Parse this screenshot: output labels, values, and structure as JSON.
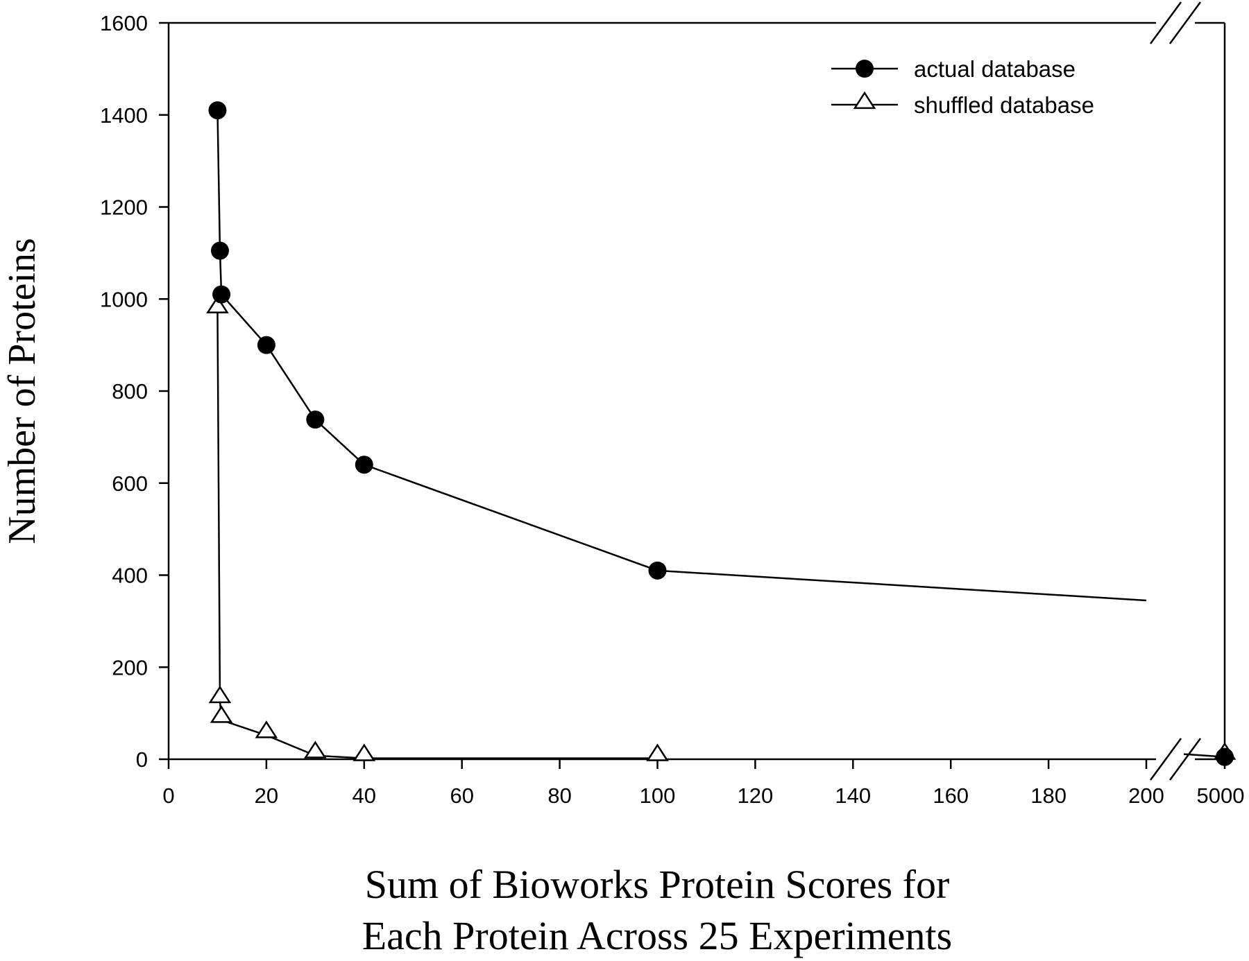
{
  "chart_data": {
    "type": "line",
    "title": "",
    "xlabel_lines": [
      "Sum of Bioworks Protein Scores for",
      "Each Protein Across 25 Experiments"
    ],
    "ylabel": "Number of Proteins",
    "xlim": [
      0,
      200
    ],
    "ylim": [
      0,
      1600
    ],
    "x_break": {
      "after": 200,
      "break_tick": 5000
    },
    "x_ticks": [
      0,
      20,
      40,
      60,
      80,
      100,
      120,
      140,
      160,
      180,
      200
    ],
    "x_tick_labels": [
      "0",
      "20",
      "40",
      "60",
      "80",
      "100",
      "120",
      "140",
      "160",
      "180",
      "200"
    ],
    "x_break_tick_label": "5000",
    "y_ticks": [
      0,
      200,
      400,
      600,
      800,
      1000,
      1200,
      1400,
      1600
    ],
    "y_tick_labels": [
      "0",
      "200",
      "400",
      "600",
      "800",
      "1000",
      "1200",
      "1400",
      "1600"
    ],
    "grid": false,
    "legend_position": "top-right",
    "series": [
      {
        "name": "actual database",
        "marker": "filled-circle",
        "color": "#000000",
        "points": [
          {
            "x": 10,
            "y": 1410
          },
          {
            "x": 10.5,
            "y": 1105
          },
          {
            "x": 10.8,
            "y": 1010
          },
          {
            "x": 20,
            "y": 900
          },
          {
            "x": 30,
            "y": 738
          },
          {
            "x": 40,
            "y": 640
          },
          {
            "x": 100,
            "y": 410
          },
          {
            "x": 5000,
            "y": 5
          }
        ],
        "line_through_break_to": {
          "x": 200,
          "y": 345
        }
      },
      {
        "name": "shuffled database",
        "marker": "open-triangle",
        "color": "#000000",
        "points": [
          {
            "x": 10,
            "y": 975
          },
          {
            "x": 10.5,
            "y": 128
          },
          {
            "x": 10.8,
            "y": 85
          },
          {
            "x": 20,
            "y": 52
          },
          {
            "x": 30,
            "y": 8
          },
          {
            "x": 40,
            "y": 2
          },
          {
            "x": 100,
            "y": 2
          },
          {
            "x": 5000,
            "y": 5
          }
        ]
      }
    ]
  }
}
